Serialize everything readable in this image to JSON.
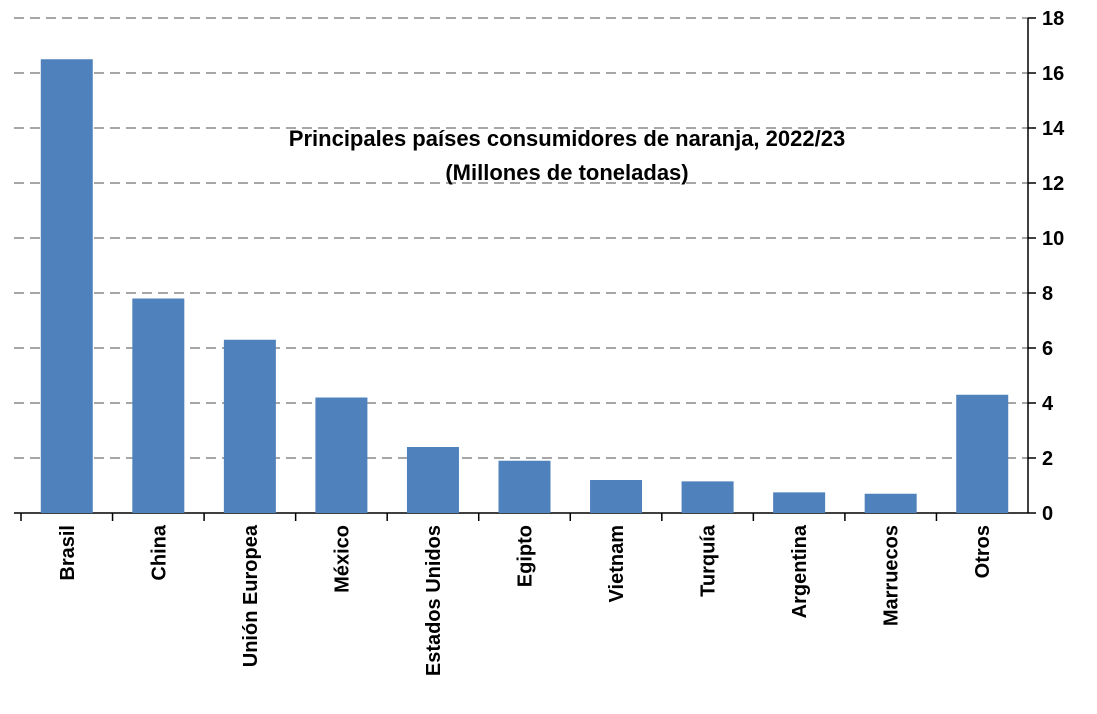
{
  "chart_data": {
    "type": "bar",
    "title": "Principales países consumidores de naranja, 2022/23",
    "subtitle": "(Millones de toneladas)",
    "categories": [
      "Brasil",
      "China",
      "Unión Europea",
      "México",
      "Estados Unidos",
      "Egipto",
      "Vietnam",
      "Turquía",
      "Argentina",
      "Marruecos",
      "Otros"
    ],
    "values": [
      16.5,
      7.8,
      6.3,
      4.2,
      2.4,
      1.9,
      1.2,
      1.15,
      0.75,
      0.7,
      4.3
    ],
    "color": "#4f81bd",
    "ylim": [
      0,
      18
    ],
    "yticks": [
      0,
      2,
      4,
      6,
      8,
      10,
      12,
      14,
      16,
      18
    ],
    "grid": true,
    "y_axis_side": "right"
  }
}
